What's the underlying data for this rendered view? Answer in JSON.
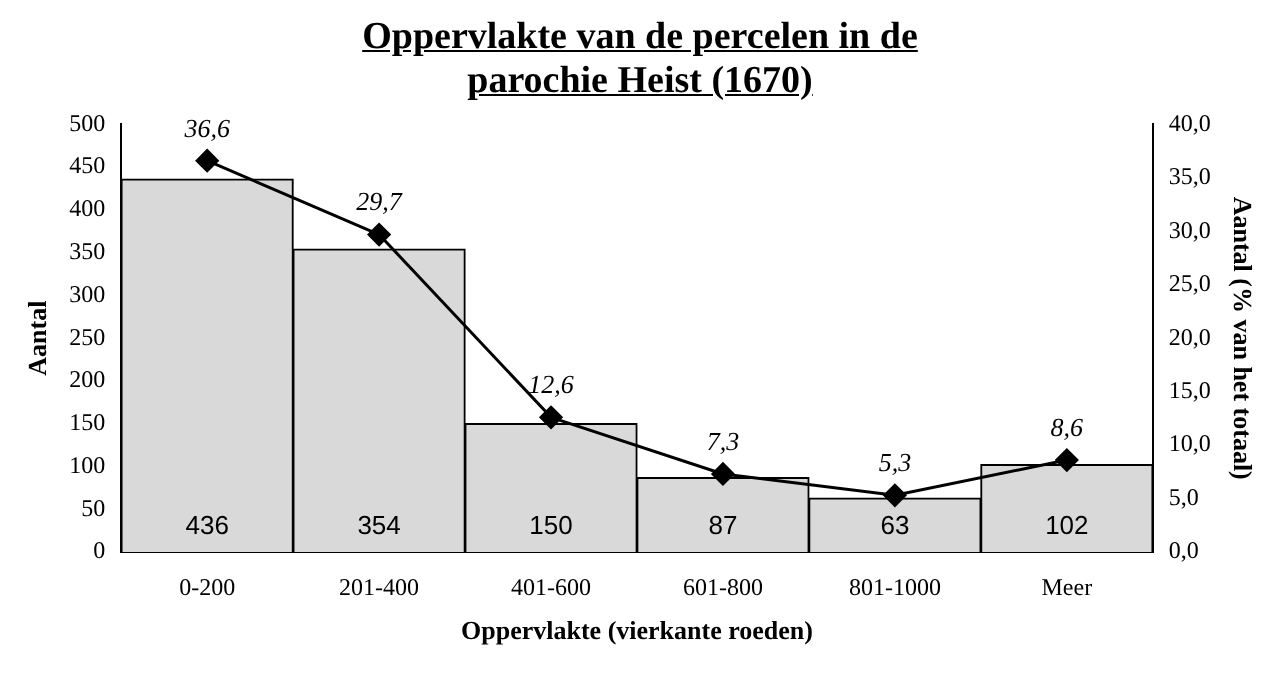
{
  "chart_data": {
    "type": "bar",
    "title": "Oppervlakte van de percelen in de parochie Heist (1670)",
    "xlabel": "Oppervlakte (vierkante roeden)",
    "ylabel": "Aantal",
    "y2label": "Aantal (% van het totaal)",
    "categories": [
      "0-200",
      "201-400",
      "401-600",
      "601-800",
      "801-1000",
      "Meer"
    ],
    "series": [
      {
        "color": "#d9d9d9",
        "values": [
          436,
          354,
          150,
          87,
          63,
          102
        ],
        "value_labels": [
          "436",
          "354",
          "150",
          "87",
          "63",
          "102"
        ]
      },
      {
        "type": "line",
        "axis": "y2",
        "color": "#000000",
        "marker": "diamond",
        "values": [
          36.6,
          29.7,
          12.6,
          7.3,
          5.3,
          8.6
        ],
        "value_labels": [
          "36,6",
          "29,7",
          "12,6",
          "7,3",
          "5,3",
          "8,6"
        ]
      }
    ],
    "ylim": [
      0,
      500
    ],
    "yticks": [
      0,
      50,
      100,
      150,
      200,
      250,
      300,
      350,
      400,
      450,
      500
    ],
    "y2lim": [
      0,
      40
    ],
    "y2ticks": [
      {
        "value": 0,
        "label": "0,0"
      },
      {
        "value": 5,
        "label": "5,0"
      },
      {
        "value": 10,
        "label": "10,0"
      },
      {
        "value": 15,
        "label": "15,0"
      },
      {
        "value": 20,
        "label": "20,0"
      },
      {
        "value": 25,
        "label": "25,0"
      },
      {
        "value": 30,
        "label": "30,0"
      },
      {
        "value": 35,
        "label": "35,0"
      },
      {
        "value": 40,
        "label": "40,0"
      }
    ],
    "grid": false,
    "legend": false
  }
}
